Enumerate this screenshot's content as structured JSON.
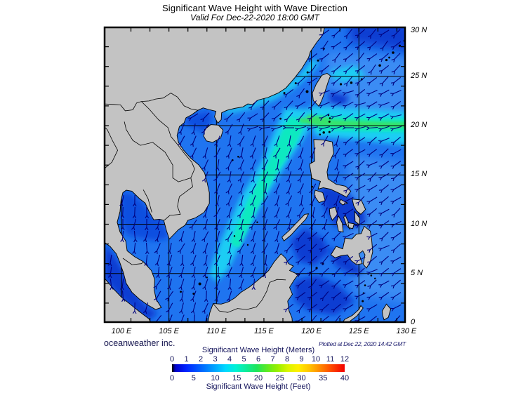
{
  "header": {
    "title": "Significant Wave Height with Wave Direction",
    "subtitle": "Valid For Dec-22-2020 18:00 GMT"
  },
  "footer": {
    "credit": "oceanweather inc.",
    "plotted": "Plotted at Dec 22, 2020 14:42 GMT"
  },
  "axes": {
    "lon": [
      {
        "label": "100 E",
        "value": 100
      },
      {
        "label": "105 E",
        "value": 105
      },
      {
        "label": "110 E",
        "value": 110
      },
      {
        "label": "115 E",
        "value": 115
      },
      {
        "label": "120 E",
        "value": 120
      },
      {
        "label": "125 E",
        "value": 125
      },
      {
        "label": "130 E",
        "value": 130
      }
    ],
    "lat": [
      {
        "label": "30 N",
        "value": 30
      },
      {
        "label": "25 N",
        "value": 25
      },
      {
        "label": "20 N",
        "value": 20
      },
      {
        "label": "15 N",
        "value": 15
      },
      {
        "label": "10 N",
        "value": 10
      },
      {
        "label": "5 N",
        "value": 5
      },
      {
        "label": "0",
        "value": 0
      }
    ]
  },
  "colorbar": {
    "meters_label": "Significant Wave Height (Meters)",
    "feet_label": "Significant Wave Height (Feet)",
    "meters_ticks": [
      "0",
      "1",
      "2",
      "3",
      "4",
      "5",
      "6",
      "7",
      "8",
      "9",
      "10",
      "11",
      "12"
    ],
    "feet_ticks": [
      "0",
      "5",
      "10",
      "15",
      "20",
      "25",
      "30",
      "35",
      "40"
    ],
    "meters_range": [
      0,
      12
    ],
    "feet_range": [
      0,
      40
    ],
    "gradient": [
      [
        "#000000",
        "0%"
      ],
      [
        "#0000cc",
        "2%"
      ],
      [
        "#0022ff",
        "8%"
      ],
      [
        "#0066ff",
        "17%"
      ],
      [
        "#00a6ff",
        "25%"
      ],
      [
        "#00d9ff",
        "31%"
      ],
      [
        "#00f2d4",
        "37%"
      ],
      [
        "#0eeb9a",
        "43%"
      ],
      [
        "#1ee55c",
        "49%"
      ],
      [
        "#5cea24",
        "55%"
      ],
      [
        "#97ef00",
        "61%"
      ],
      [
        "#d9f500",
        "67%"
      ],
      [
        "#fff000",
        "73%"
      ],
      [
        "#ffc800",
        "79%"
      ],
      [
        "#ff9000",
        "85%"
      ],
      [
        "#ff5500",
        "91%"
      ],
      [
        "#f40000",
        "100%"
      ]
    ]
  },
  "map": {
    "land_color": "#c3c3c3",
    "coast_color": "#000000",
    "sea_base_color": "#1f74f0",
    "arrow_color": "#00007d",
    "grid_color": "#000000",
    "frame_color": "#000000",
    "shade_colors": {
      "dark": "#0a3ed2",
      "royal": "#0d4fe0",
      "light": "#3a8cf4",
      "cyan": "#1ecdf4",
      "aqua": "#0fe9c0",
      "green": "#37e26a"
    }
  }
}
